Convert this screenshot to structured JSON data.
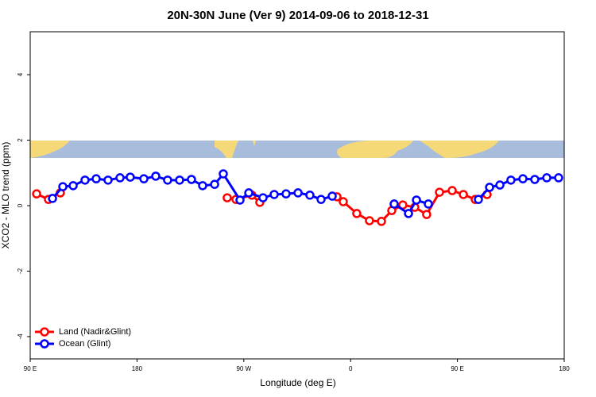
{
  "chart_data": {
    "type": "line",
    "title": "20N-30N June (Ver 9)   2014-09-06 to 2018-12-31",
    "x_label": "Longitude (deg E)",
    "y_label": "XCO2 - MLO trend (ppm)",
    "xlim": [
      90,
      540
    ],
    "ylim": [
      -4.68,
      5.31
    ],
    "xticks": [
      {
        "value": 90,
        "label": "90 E"
      },
      180,
      {
        "value": 270,
        "label": "90 W"
      },
      {
        "value": 360,
        "label": "0"
      },
      {
        "value": 450,
        "label": "90 E"
      },
      {
        "value": 540,
        "label": "180"
      }
    ],
    "yticks": [
      -4,
      -2,
      0,
      2,
      4
    ],
    "legend": "bottomleft",
    "series": [
      {
        "name": "Land (Nadir&Glint)",
        "color": "#ff0000",
        "x": [
          95.4,
          105.4,
          115.4,
          null,
          256,
          263.4,
          276.8,
          283.5,
          null,
          348.5,
          353.8,
          365.2,
          375.9,
          386,
          394.7,
          404,
          414.1,
          424.1,
          434.9,
          445.6,
          455,
          465,
          475
        ],
        "values": [
          0.36,
          0.19,
          0.39,
          null,
          0.24,
          0.19,
          0.32,
          0.1,
          null,
          0.27,
          0.12,
          -0.24,
          -0.46,
          -0.48,
          -0.15,
          0.02,
          -0.05,
          -0.27,
          0.41,
          0.46,
          0.34,
          0.19,
          0.34
        ]
      },
      {
        "name": "Ocean (Glint)",
        "color": "#0000ff",
        "x": [
          108.8,
          117.5,
          126.2,
          136.2,
          145.6,
          155.6,
          165.7,
          174.3,
          185.8,
          195.8,
          205.8,
          215.9,
          225.9,
          235.3,
          245.4,
          252.7,
          266.8,
          274.2,
          286.2,
          295.6,
          305.6,
          315.7,
          325.7,
          335.1,
          344.5,
          null,
          396.7,
          408.8,
          415.5,
          425.5,
          null,
          467.7,
          477.1,
          485.8,
          495.1,
          505.2,
          515.2,
          525.3,
          535.3
        ],
        "values": [
          0.22,
          0.58,
          0.61,
          0.78,
          0.82,
          0.78,
          0.85,
          0.87,
          0.82,
          0.9,
          0.78,
          0.78,
          0.8,
          0.61,
          0.65,
          0.97,
          0.17,
          0.39,
          0.24,
          0.34,
          0.36,
          0.39,
          0.32,
          0.19,
          0.29,
          null,
          0.05,
          -0.24,
          0.17,
          0.05,
          null,
          0.19,
          0.56,
          0.63,
          0.78,
          0.82,
          0.8,
          0.85,
          0.85
        ]
      }
    ]
  }
}
